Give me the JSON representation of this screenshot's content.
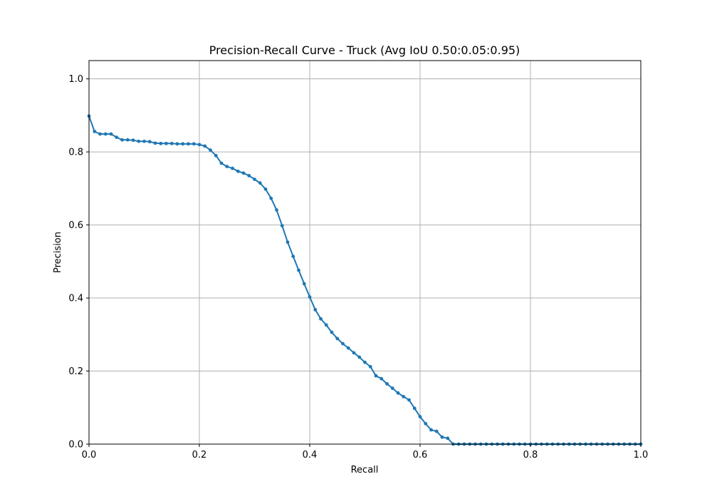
{
  "chart_data": {
    "type": "line",
    "title": "Precision-Recall Curve - Truck (Avg IoU 0.50:0.05:0.95)",
    "xlabel": "Recall",
    "ylabel": "Precision",
    "xlim": [
      0,
      1
    ],
    "ylim": [
      0,
      1.05
    ],
    "x_ticks": [
      "0.0",
      "0.2",
      "0.4",
      "0.6",
      "0.8",
      "1.0"
    ],
    "y_ticks": [
      "0.0",
      "0.2",
      "0.4",
      "0.6",
      "0.8",
      "1.0"
    ],
    "grid": true,
    "legend": "none",
    "colors": {
      "series": "#1f77b4",
      "grid": "#b0b0b0",
      "frame": "#000000"
    },
    "series": [
      {
        "x": [
          0.0,
          0.01,
          0.02,
          0.03,
          0.04,
          0.05,
          0.06,
          0.07,
          0.08,
          0.09,
          0.1,
          0.11,
          0.12,
          0.13,
          0.14,
          0.15,
          0.16,
          0.17,
          0.18,
          0.19,
          0.2,
          0.21,
          0.22,
          0.23,
          0.24,
          0.25,
          0.26,
          0.27,
          0.28,
          0.29,
          0.3,
          0.31,
          0.32,
          0.33,
          0.34,
          0.35,
          0.36,
          0.37,
          0.38,
          0.39,
          0.4,
          0.41,
          0.42,
          0.43,
          0.44,
          0.45,
          0.46,
          0.47,
          0.48,
          0.49,
          0.5,
          0.51,
          0.52,
          0.53,
          0.54,
          0.55,
          0.56,
          0.57,
          0.58,
          0.59,
          0.6,
          0.61,
          0.62,
          0.63,
          0.64,
          0.65,
          0.66,
          0.67,
          0.68,
          0.69,
          0.7,
          0.71,
          0.72,
          0.73,
          0.74,
          0.75,
          0.76,
          0.77,
          0.78,
          0.79,
          0.8,
          0.81,
          0.82,
          0.83,
          0.84,
          0.85,
          0.86,
          0.87,
          0.88,
          0.89,
          0.9,
          0.91,
          0.92,
          0.93,
          0.94,
          0.95,
          0.96,
          0.97,
          0.98,
          0.99,
          1.0
        ],
        "values": [
          0.898,
          0.856,
          0.849,
          0.849,
          0.849,
          0.84,
          0.833,
          0.833,
          0.832,
          0.829,
          0.829,
          0.828,
          0.824,
          0.823,
          0.823,
          0.823,
          0.822,
          0.822,
          0.822,
          0.822,
          0.82,
          0.816,
          0.805,
          0.79,
          0.769,
          0.76,
          0.755,
          0.747,
          0.742,
          0.735,
          0.725,
          0.715,
          0.698,
          0.673,
          0.641,
          0.598,
          0.553,
          0.514,
          0.476,
          0.439,
          0.403,
          0.368,
          0.343,
          0.326,
          0.306,
          0.289,
          0.275,
          0.263,
          0.25,
          0.238,
          0.224,
          0.212,
          0.187,
          0.179,
          0.165,
          0.153,
          0.14,
          0.13,
          0.121,
          0.098,
          0.075,
          0.056,
          0.039,
          0.035,
          0.019,
          0.016,
          0.0,
          0.0,
          0.0,
          0.0,
          0.0,
          0.0,
          0.0,
          0.0,
          0.0,
          0.0,
          0.0,
          0.0,
          0.0,
          0.0,
          0.0,
          0.0,
          0.0,
          0.0,
          0.0,
          0.0,
          0.0,
          0.0,
          0.0,
          0.0,
          0.0,
          0.0,
          0.0,
          0.0,
          0.0,
          0.0,
          0.0,
          0.0,
          0.0,
          0.0,
          0.0
        ]
      }
    ]
  }
}
